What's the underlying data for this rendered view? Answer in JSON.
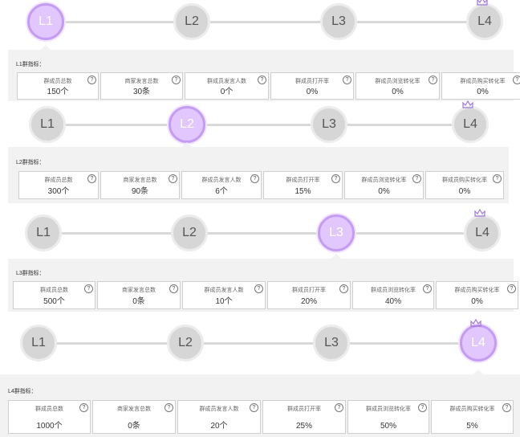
{
  "panels": [
    {
      "active": 0,
      "title": "L1群指标：",
      "metrics": [
        {
          "label": "群成员总数",
          "value": "150个"
        },
        {
          "label": "商家发言总数",
          "value": "30条"
        },
        {
          "label": "群成员发言人数",
          "value": "0个"
        },
        {
          "label": "群成员打开率",
          "value": "0%"
        },
        {
          "label": "群成员浏览转化率",
          "value": "0%"
        },
        {
          "label": "群成员购买转化率",
          "value": "0%"
        }
      ]
    },
    {
      "active": 1,
      "title": "L2群指标：",
      "metrics": [
        {
          "label": "群成员总数",
          "value": "300个"
        },
        {
          "label": "商家发言总数",
          "value": "90条"
        },
        {
          "label": "群成员发言人数",
          "value": "6个"
        },
        {
          "label": "群成员打开率",
          "value": "15%"
        },
        {
          "label": "群成员浏览转化率",
          "value": "0%"
        },
        {
          "label": "群成员购买转化率",
          "value": "0%"
        }
      ]
    },
    {
      "active": 2,
      "title": "L3群指标：",
      "metrics": [
        {
          "label": "群成员总数",
          "value": "500个"
        },
        {
          "label": "商家发言总数",
          "value": "0条"
        },
        {
          "label": "群成员发言人数",
          "value": "10个"
        },
        {
          "label": "群成员打开率",
          "value": "20%"
        },
        {
          "label": "群成员浏览转化率",
          "value": "40%"
        },
        {
          "label": "群成员购买转化率",
          "value": "0%"
        }
      ]
    },
    {
      "active": 3,
      "title": "L4群指标：",
      "metrics": [
        {
          "label": "群成员总数",
          "value": "1000个"
        },
        {
          "label": "商家发言总数",
          "value": "0条"
        },
        {
          "label": "群成员发言人数",
          "value": "20个"
        },
        {
          "label": "群成员打开率",
          "value": "25%"
        },
        {
          "label": "群成员浏览转化率",
          "value": "50%"
        },
        {
          "label": "群成员购买转化率",
          "value": "5%"
        }
      ]
    }
  ],
  "levels": [
    "L1",
    "L2",
    "L3",
    "L4"
  ],
  "help_glyph": "?",
  "colors": {
    "active_fill": "#e2c7ff",
    "active_border": "#c49cf2",
    "inactive_fill": "#d6d6d6",
    "crown": "#a077d9"
  }
}
